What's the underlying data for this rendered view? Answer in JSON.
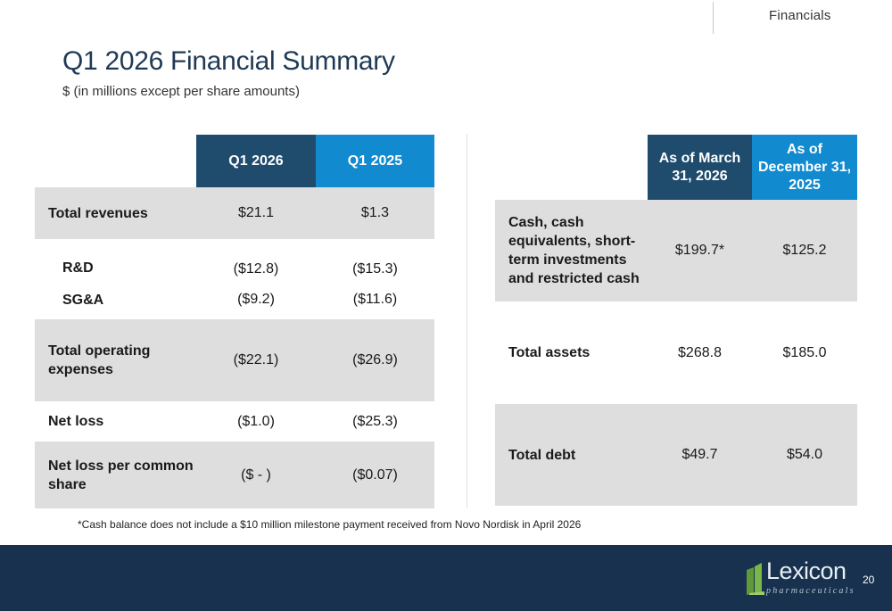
{
  "header": {
    "section": "Financials"
  },
  "title": "Q1 2026 Financial Summary",
  "subtitle": "$ (in millions except per share amounts)",
  "left_table": {
    "columns": [
      "Q1 2026",
      "Q1 2025"
    ],
    "rows": [
      {
        "label": "Total revenues",
        "q1_2026": "$21.1",
        "q1_2025": "$1.3"
      },
      {
        "label": "R&D",
        "q1_2026": "($12.8)",
        "q1_2025": "($15.3)"
      },
      {
        "label": "SG&A",
        "q1_2026": "($9.2)",
        "q1_2025": "($11.6)"
      },
      {
        "label": "Total operating expenses",
        "q1_2026": "($22.1)",
        "q1_2025": "($26.9)"
      },
      {
        "label": "Net loss",
        "q1_2026": "($1.0)",
        "q1_2025": "($25.3)"
      },
      {
        "label": "Net loss per common share",
        "q1_2026": "($ - )",
        "q1_2025": "($0.07)"
      }
    ]
  },
  "right_table": {
    "columns": [
      "As of March 31, 2026",
      "As of December 31, 2025"
    ],
    "rows": [
      {
        "label": "Cash, cash equivalents, short-term investments and restricted cash",
        "mar_2026": "$199.7*",
        "dec_2025": "$125.2"
      },
      {
        "label": "Total assets",
        "mar_2026": "$268.8",
        "dec_2025": "$185.0"
      },
      {
        "label": "Total debt",
        "mar_2026": "$49.7",
        "dec_2025": "$54.0"
      }
    ]
  },
  "footnote": "*Cash balance does not include a $10 million milestone payment received from Novo Nordisk in April 2026",
  "footer": {
    "logo_text": "Lexicon",
    "logo_subtext": "pharmaceuticals",
    "page_number": "20"
  },
  "colors": {
    "header_dark": "#1f4b6d",
    "header_blue": "#128ad0",
    "row_gray": "#dedede",
    "footer_bg": "#17314e",
    "title": "#1f3a55",
    "logo_green": "#7ab648"
  },
  "icons": [
    "lexicon-logo-icon"
  ]
}
